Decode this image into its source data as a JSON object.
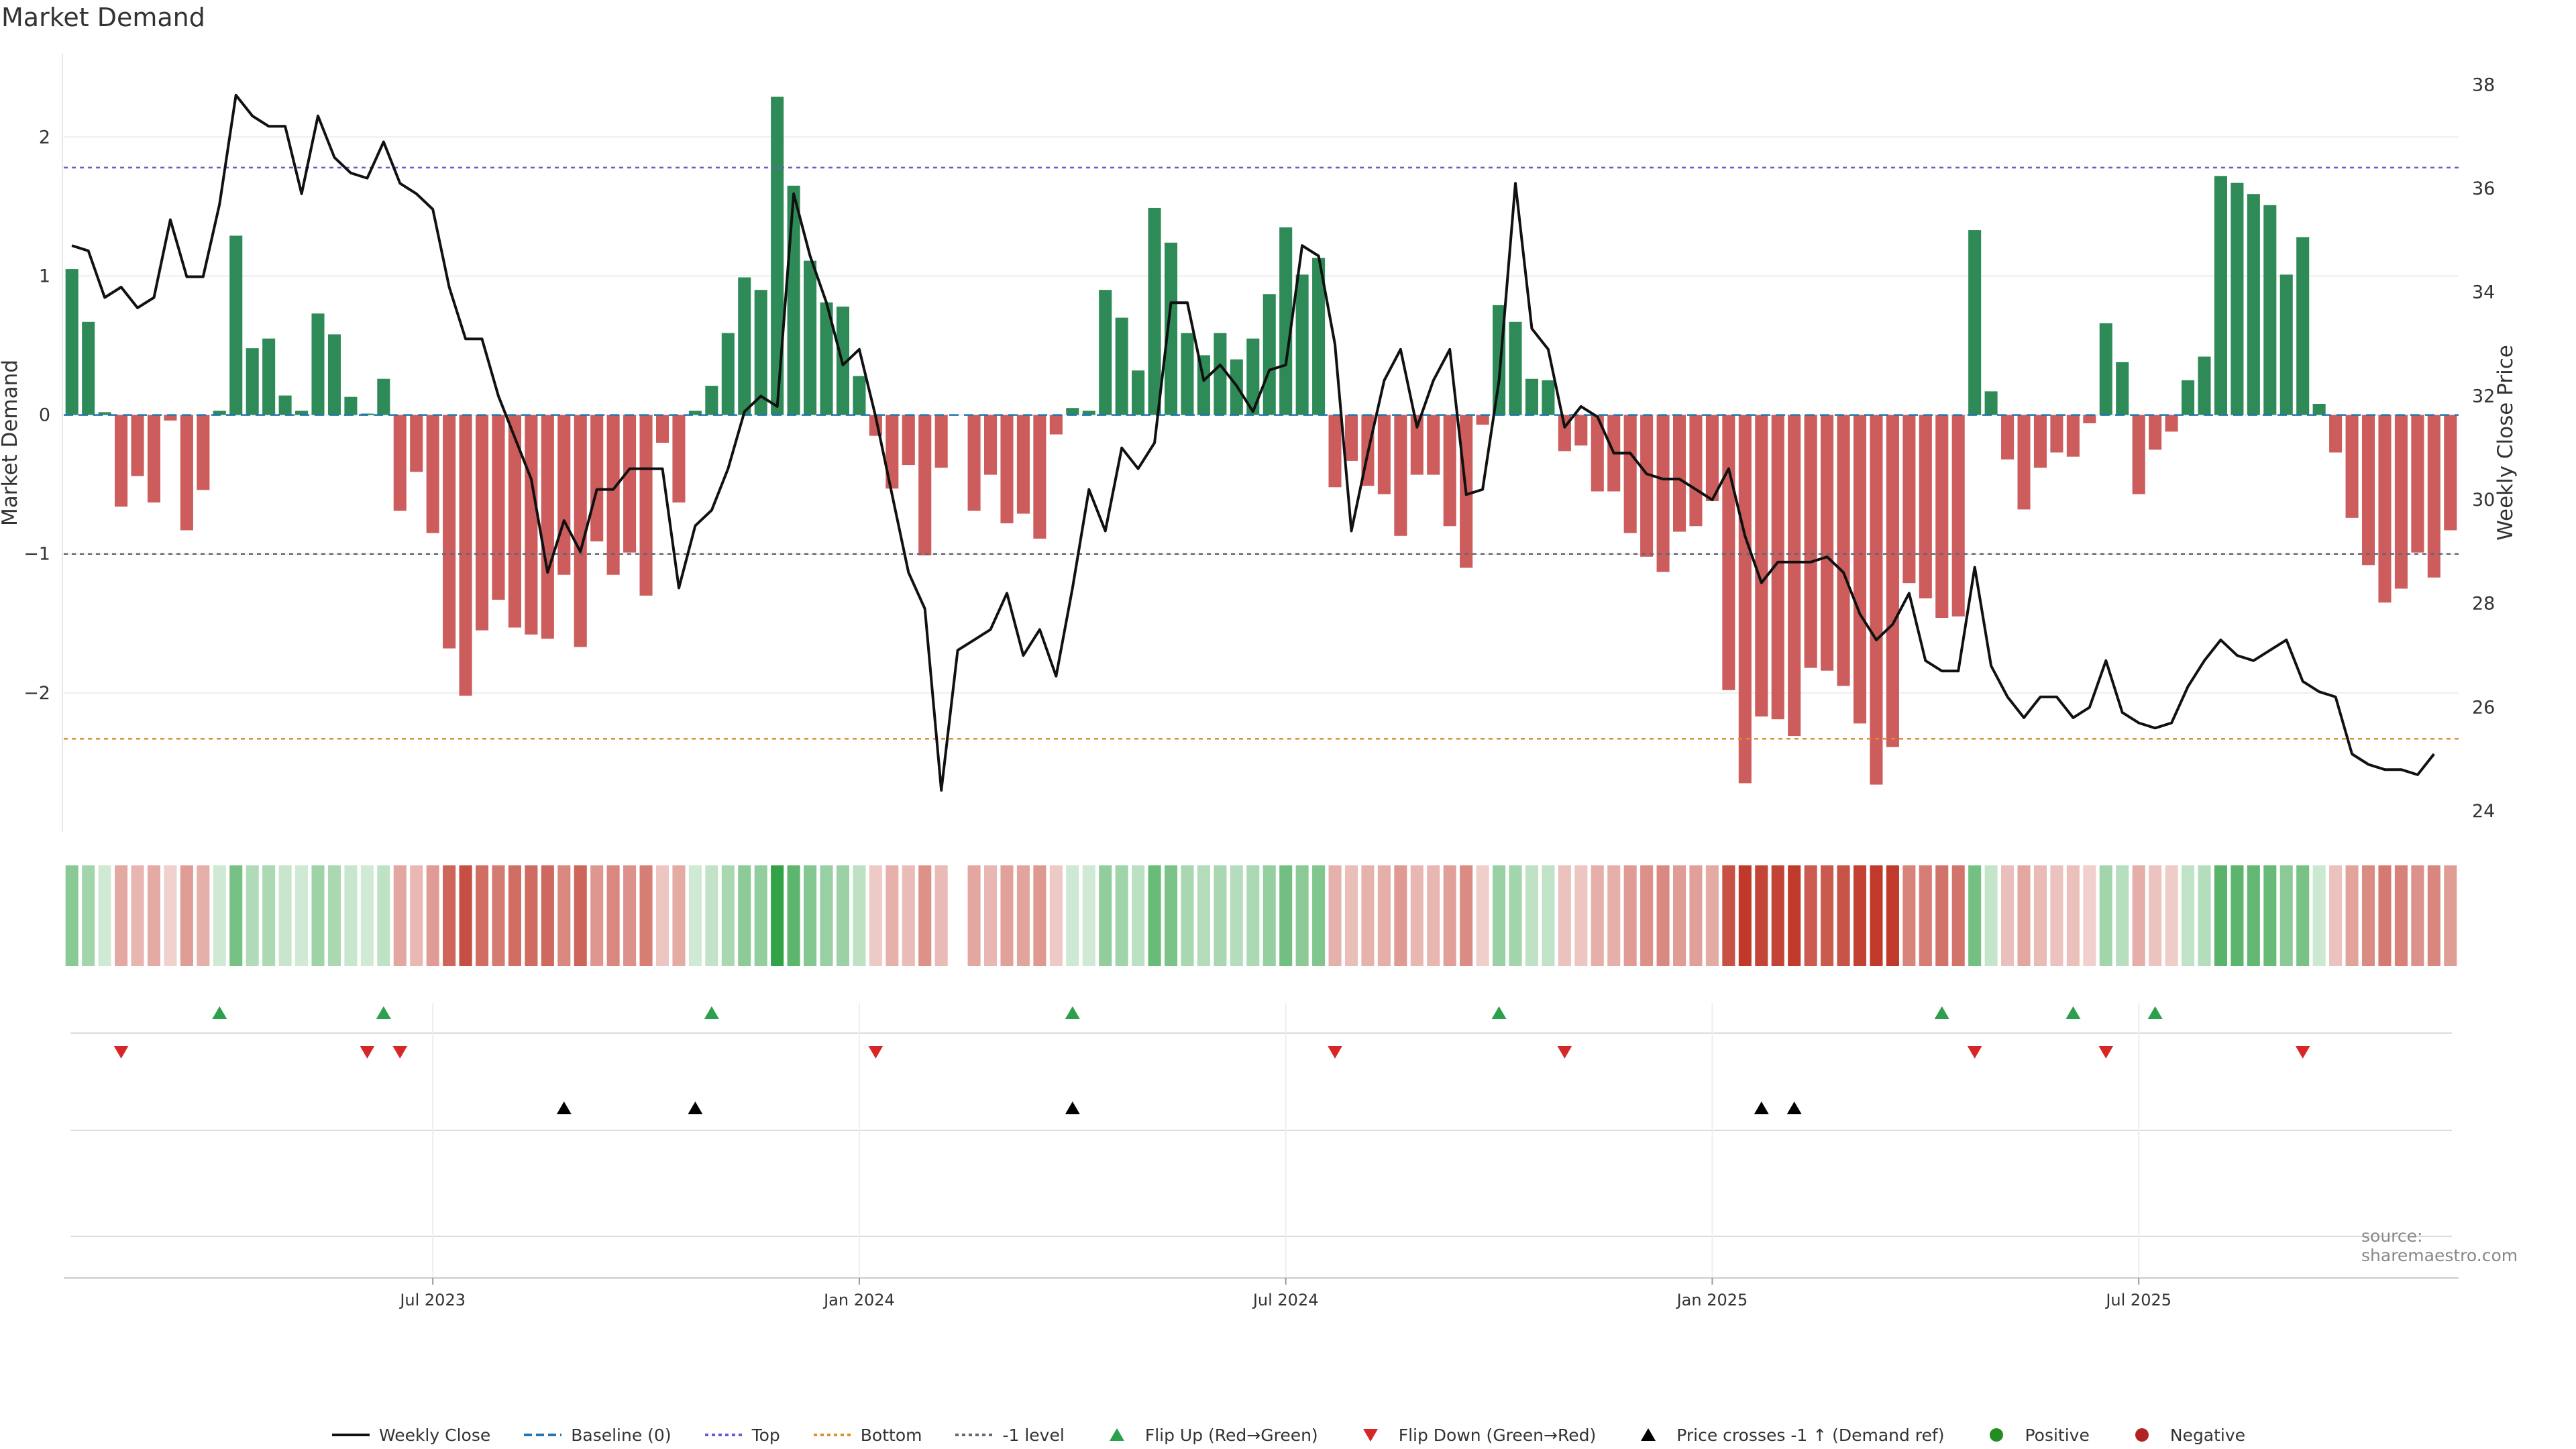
{
  "title": "Market Demand",
  "source": "source: sharemaestro.com",
  "colors": {
    "positive": "#2e8b57",
    "negative": "#cd5c5c",
    "price_line": "#111111",
    "top_line": "#6a5acd",
    "bottom_line": "#e08c2e",
    "minus_one_line": "#666677",
    "baseline": "#1f77b4",
    "flip_up": "#2ca04c",
    "flip_down": "#d62728",
    "cross": "#000000",
    "positive_dot": "#228b22",
    "negative_dot": "#b22222"
  },
  "legend": [
    {
      "label": "Weekly Close",
      "kind": "solid-line",
      "color": "#111111"
    },
    {
      "label": "Baseline (0)",
      "kind": "dashed-line",
      "color": "#1f77b4"
    },
    {
      "label": "Top",
      "kind": "dotted-line",
      "color": "#6a5acd"
    },
    {
      "label": "Bottom",
      "kind": "dotted-line",
      "color": "#e08c2e"
    },
    {
      "label": "-1 level",
      "kind": "dotted-line",
      "color": "#666677"
    },
    {
      "label": "Flip Up (Red→Green)",
      "kind": "triangle-up",
      "color": "#2ca04c"
    },
    {
      "label": "Flip Down (Green→Red)",
      "kind": "triangle-down",
      "color": "#d62728"
    },
    {
      "label": "Price crosses -1 ↑ (Demand ref)",
      "kind": "triangle-up",
      "color": "#000000"
    },
    {
      "label": "Positive",
      "kind": "dot",
      "color": "#228b22"
    },
    {
      "label": "Negative",
      "kind": "dot",
      "color": "#b22222"
    }
  ],
  "chart_data": {
    "type": "bar",
    "ylabel": "Market Demand",
    "y2label": "Weekly Close Price",
    "ylim": [
      -3.0,
      2.6
    ],
    "y2lim": [
      23.6,
      38.6
    ],
    "yticks": [
      2,
      1,
      0,
      -1,
      -2
    ],
    "y2ticks": [
      38,
      36,
      34,
      32,
      30,
      28,
      26,
      24
    ],
    "xtick_labels": [
      "Jul 2023",
      "Jan 2024",
      "Jul 2024",
      "Jan 2025",
      "Jul 2025"
    ],
    "xtick_index": [
      22,
      48,
      74,
      100,
      126
    ],
    "grid": true,
    "reference_lines": {
      "top": 1.78,
      "bottom": -2.33,
      "minus_one": -1.0,
      "baseline": 0
    },
    "series": [
      {
        "name": "Market Demand",
        "kind": "bar",
        "values": [
          1.05,
          0.67,
          0.02,
          -0.66,
          -0.44,
          -0.63,
          -0.04,
          -0.83,
          -0.54,
          0.03,
          1.29,
          0.48,
          0.55,
          0.14,
          0.03,
          0.73,
          0.58,
          0.13,
          0.01,
          0.26,
          -0.69,
          -0.41,
          -0.85,
          -1.68,
          -2.02,
          -1.55,
          -1.33,
          -1.53,
          -1.58,
          -1.61,
          -1.15,
          -1.67,
          -0.91,
          -1.15,
          -0.99,
          -1.3,
          -0.2,
          -0.63,
          0.03,
          0.21,
          0.59,
          0.99,
          0.9,
          2.29,
          1.65,
          1.11,
          0.81,
          0.78,
          0.28,
          -0.15,
          -0.53,
          -0.36,
          -1.01,
          -0.38,
          0,
          -0.69,
          -0.43,
          -0.78,
          -0.71,
          -0.89,
          -0.14,
          0.05,
          0.03,
          0.9,
          0.7,
          0.32,
          1.49,
          1.24,
          0.59,
          0.43,
          0.59,
          0.4,
          0.55,
          0.87,
          1.35,
          1.01,
          1.13,
          -0.52,
          -0.33,
          -0.51,
          -0.57,
          -0.87,
          -0.43,
          -0.43,
          -0.8,
          -1.1,
          -0.07,
          0.79,
          0.67,
          0.26,
          0.25,
          -0.26,
          -0.22,
          -0.55,
          -0.55,
          -0.85,
          -1.02,
          -1.13,
          -0.84,
          -0.8,
          -0.62,
          -1.98,
          -2.65,
          -2.17,
          -2.19,
          -2.31,
          -1.82,
          -1.84,
          -1.95,
          -2.22,
          -2.66,
          -2.39,
          -1.21,
          -1.32,
          -1.46,
          -1.45,
          1.33,
          0.17,
          -0.32,
          -0.68,
          -0.38,
          -0.27,
          -0.3,
          -0.06,
          0.66,
          0.38,
          -0.57,
          -0.25,
          -0.12,
          0.25,
          0.42,
          1.72,
          1.67,
          1.59,
          1.51,
          1.01,
          1.28,
          0.08,
          -0.27,
          -0.74,
          -1.08,
          -1.35,
          -1.25,
          -0.99,
          -1.17,
          -0.83
        ]
      },
      {
        "name": "Weekly Close",
        "kind": "line",
        "values": [
          34.9,
          34.8,
          33.9,
          34.1,
          33.7,
          33.9,
          35.4,
          34.3,
          34.3,
          35.7,
          37.8,
          37.4,
          37.2,
          37.2,
          35.9,
          37.4,
          36.6,
          36.3,
          36.2,
          36.9,
          36.1,
          35.9,
          35.6,
          34.1,
          33.1,
          33.1,
          32.0,
          31.2,
          30.4,
          28.6,
          29.6,
          29.0,
          30.2,
          30.2,
          30.6,
          30.6,
          30.6,
          28.3,
          29.5,
          29.8,
          30.6,
          31.7,
          32.0,
          31.8,
          35.9,
          34.7,
          33.8,
          32.6,
          32.9,
          31.6,
          30.1,
          28.6,
          27.9,
          24.4,
          27.1,
          27.3,
          27.5,
          28.2,
          27.0,
          27.5,
          26.6,
          28.3,
          30.2,
          29.4,
          31.0,
          30.6,
          31.1,
          33.8,
          33.8,
          32.3,
          32.6,
          32.2,
          31.7,
          32.5,
          32.6,
          34.9,
          34.7,
          33.0,
          29.4,
          30.9,
          32.3,
          32.9,
          31.4,
          32.3,
          32.9,
          30.1,
          30.2,
          32.3,
          36.1,
          33.3,
          32.9,
          31.4,
          31.8,
          31.6,
          30.9,
          30.9,
          30.5,
          30.4,
          30.4,
          30.2,
          30.0,
          30.6,
          29.3,
          28.4,
          28.8,
          28.8,
          28.8,
          28.9,
          28.6,
          27.8,
          27.3,
          27.6,
          28.2,
          26.9,
          26.7,
          26.7,
          28.7,
          26.8,
          26.2,
          25.8,
          26.2,
          26.2,
          25.8,
          26.0,
          26.9,
          25.9,
          25.7,
          25.6,
          25.7,
          26.4,
          26.9,
          27.3,
          27.0,
          26.9,
          27.1,
          27.3,
          26.5,
          26.3,
          26.2,
          25.1,
          24.9,
          24.8,
          24.8,
          24.7,
          25.1
        ]
      }
    ],
    "flip_up_index": [
      9,
      19,
      39,
      61,
      87,
      114,
      122,
      127
    ],
    "flip_down_index": [
      3,
      18,
      20,
      49,
      77,
      91,
      116,
      124,
      136
    ],
    "price_cross_index": [
      30,
      38,
      61,
      103,
      105
    ]
  }
}
